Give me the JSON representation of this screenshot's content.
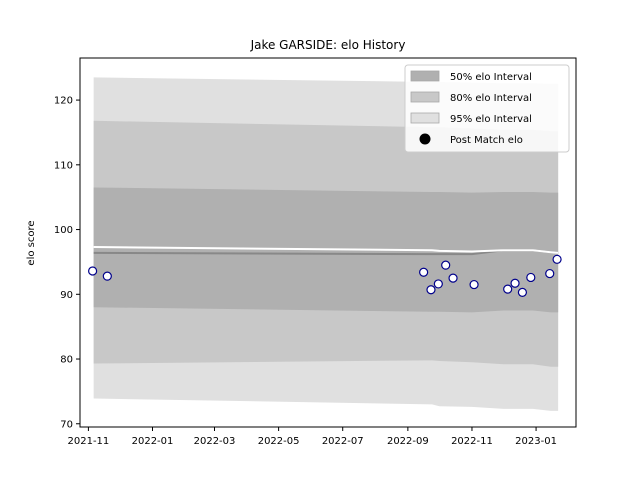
{
  "chart_data": {
    "type": "line",
    "title": "Jake GARSIDE: elo History",
    "xlabel": "",
    "ylabel": "elo score",
    "x_ticks": [
      "2021-11",
      "2022-01",
      "2022-03",
      "2022-05",
      "2022-07",
      "2022-09",
      "2022-11",
      "2023-01"
    ],
    "y_ticks": [
      70,
      80,
      90,
      100,
      110,
      120
    ],
    "xlim": [
      "2021-10-24",
      "2023-02-08"
    ],
    "ylim": [
      69.5,
      126.5
    ],
    "grid": false,
    "legend_position": "top-right",
    "legend": [
      {
        "label": "50% elo Interval",
        "color": "#b0b0b0",
        "kind": "patch"
      },
      {
        "label": "80% elo Interval",
        "color": "#c8c8c8",
        "kind": "patch"
      },
      {
        "label": "95% elo Interval",
        "color": "#e0e0e0",
        "kind": "patch"
      },
      {
        "label": "Post Match elo",
        "color": "#000000",
        "kind": "dot"
      }
    ],
    "bands": {
      "x": [
        "2021-11-06",
        "2022-09-24",
        "2022-10-01",
        "2022-11-01",
        "2022-12-01",
        "2022-12-29",
        "2023-01-15",
        "2023-01-22"
      ],
      "p95_upper": [
        123.5,
        122.8,
        122.8,
        122.7,
        122.6,
        122.6,
        122.5,
        122.5
      ],
      "p80_upper": [
        116.8,
        115.8,
        115.8,
        115.6,
        115.4,
        115.4,
        115.2,
        115.2
      ],
      "p50_upper": [
        106.5,
        105.8,
        105.8,
        105.7,
        105.8,
        105.8,
        105.7,
        105.7
      ],
      "p50_lower": [
        88.0,
        87.3,
        87.3,
        87.2,
        87.5,
        87.5,
        87.2,
        87.2
      ],
      "p80_lower": [
        79.3,
        79.8,
        79.7,
        79.5,
        79.2,
        79.2,
        78.8,
        78.8
      ],
      "p95_lower": [
        73.9,
        73.0,
        72.7,
        72.6,
        72.3,
        72.3,
        72.0,
        72.0
      ]
    },
    "median_line": {
      "x": [
        "2021-11-06",
        "2022-09-24",
        "2022-10-01",
        "2022-11-01",
        "2022-12-01",
        "2022-12-29",
        "2023-01-15",
        "2023-01-22"
      ],
      "y": [
        96.4,
        96.2,
        96.2,
        96.2,
        96.8,
        96.8,
        96.5,
        96.4
      ],
      "color": "#888888"
    },
    "mean_line": {
      "x": [
        "2021-11-06",
        "2022-09-24",
        "2022-10-01",
        "2022-11-01",
        "2022-12-01",
        "2022-12-29",
        "2023-01-15",
        "2023-01-22"
      ],
      "y": [
        97.3,
        96.8,
        96.7,
        96.6,
        96.8,
        96.8,
        96.5,
        96.4
      ],
      "color": "#ffffff"
    },
    "series": [
      {
        "name": "Post Match elo",
        "type": "scatter",
        "marker_fill": "#ffffff",
        "marker_edge": "#00008b",
        "points": [
          {
            "x": "2021-11-05",
            "y": 93.6
          },
          {
            "x": "2021-11-19",
            "y": 92.8
          },
          {
            "x": "2022-09-16",
            "y": 93.4
          },
          {
            "x": "2022-09-23",
            "y": 90.7
          },
          {
            "x": "2022-09-30",
            "y": 91.6
          },
          {
            "x": "2022-10-07",
            "y": 94.5
          },
          {
            "x": "2022-10-14",
            "y": 92.5
          },
          {
            "x": "2022-11-03",
            "y": 91.5
          },
          {
            "x": "2022-12-05",
            "y": 90.8
          },
          {
            "x": "2022-12-12",
            "y": 91.7
          },
          {
            "x": "2022-12-19",
            "y": 90.3
          },
          {
            "x": "2022-12-27",
            "y": 92.6
          },
          {
            "x": "2023-01-14",
            "y": 93.2
          },
          {
            "x": "2023-01-21",
            "y": 95.4
          }
        ]
      }
    ]
  }
}
